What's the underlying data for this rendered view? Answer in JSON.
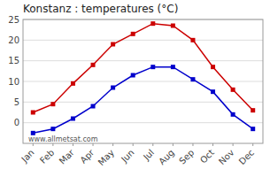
{
  "chart_data": {
    "type": "line",
    "title": "Konstanz : temperatures (°C)",
    "categories": [
      "Jan",
      "Feb",
      "Mar",
      "Apr",
      "May",
      "Jun",
      "Jul",
      "Aug",
      "Sep",
      "Oct",
      "Nov",
      "Dec"
    ],
    "series": [
      {
        "color": "#cc0000",
        "marker": "square",
        "line_style": "solid",
        "values": [
          2.5,
          4.5,
          9.5,
          14.0,
          19.0,
          21.5,
          24.0,
          23.5,
          20.0,
          13.5,
          8.0,
          3.0
        ]
      },
      {
        "color": "#0000cc",
        "marker": "square",
        "line_style": "solid",
        "values": [
          -2.5,
          -1.5,
          1.0,
          4.0,
          8.5,
          11.5,
          13.5,
          13.5,
          10.5,
          7.5,
          2.0,
          -1.5
        ]
      }
    ],
    "ylim": [
      -5,
      25
    ],
    "yticks": [
      0,
      5,
      10,
      15,
      20,
      25
    ],
    "grid": "y",
    "annotations": [
      "www.allmetsat.com"
    ]
  }
}
